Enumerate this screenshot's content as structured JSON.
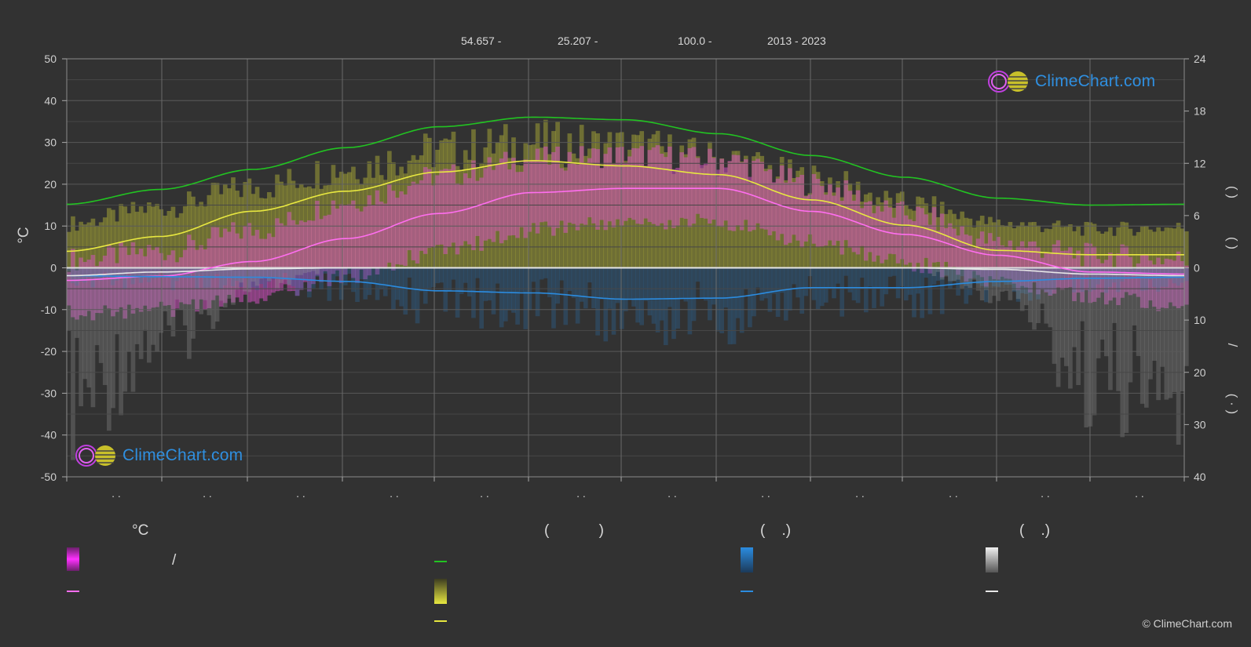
{
  "header": {
    "latitude": "54.657 -",
    "longitude": "25.207 -",
    "elevation": "100.0 -",
    "years": "2013 - 2023"
  },
  "logos": {
    "text": "ClimeChart.com"
  },
  "copyright": "© ClimeChart.com",
  "legend": {
    "temp_unit": "°C",
    "col2_head": "(            )",
    "col3_head": "(    .)",
    "col4_head": "(    .)",
    "slash": "/"
  },
  "chart_data": {
    "type": "line",
    "x_tick_labels": [
      ". .",
      ". .",
      ". .",
      ". .",
      ". .",
      ". .",
      ". .",
      ". .",
      ". .",
      ". .",
      ". .",
      ". ."
    ],
    "ylabel": "°C",
    "ylim": [
      -50,
      50
    ],
    "y_ticks": [
      50,
      40,
      30,
      20,
      10,
      0,
      -10,
      -20,
      -30,
      -40,
      -50
    ],
    "y2_upper_ticks": [
      24,
      18,
      12,
      6,
      0
    ],
    "y2_upper_range": [
      0,
      24
    ],
    "y2_lower_ticks": [
      0,
      10,
      20,
      30,
      40
    ],
    "y2_lower_range": [
      0,
      40
    ],
    "y2_labels_upper": "(      )",
    "y2_labels_mid": "(      )",
    "y2_labels_lower": "/",
    "y2_labels_bottom": "(  ·  )",
    "grid": true,
    "x": [
      0,
      1,
      2,
      3,
      4,
      5,
      6,
      7,
      8,
      9,
      10,
      11,
      12
    ],
    "series": [
      {
        "id": "daylight",
        "axis": "right-upper",
        "color": "#22c322",
        "values": [
          7.3,
          9.0,
          11.3,
          13.8,
          16.2,
          17.3,
          17.0,
          15.4,
          12.9,
          10.4,
          8.0,
          7.2,
          7.3
        ]
      },
      {
        "id": "sunshine",
        "axis": "right-upper",
        "color": "#e8e840",
        "values": [
          1.9,
          3.6,
          6.5,
          8.8,
          11.0,
          12.3,
          11.7,
          10.7,
          7.8,
          4.9,
          2.0,
          1.5,
          1.5
        ]
      },
      {
        "id": "temp_mean",
        "axis": "left",
        "color": "#ff6ef0",
        "values": [
          -3.0,
          -2.0,
          1.5,
          7.0,
          13.0,
          18.0,
          19.0,
          19.0,
          13.5,
          8.0,
          3.0,
          -1.0,
          -1.5
        ]
      },
      {
        "id": "precip",
        "axis": "right-lower",
        "color": "#2b8ce0",
        "values": [
          1.5,
          1.7,
          1.8,
          2.6,
          4.4,
          4.8,
          6.0,
          5.8,
          3.8,
          3.8,
          2.6,
          2.0,
          1.8
        ]
      },
      {
        "id": "snow",
        "axis": "right-lower",
        "color": "#e8e8e8",
        "values": [
          1.5,
          0.8,
          0.2,
          0.0,
          0.0,
          0.0,
          0.0,
          0.0,
          0.0,
          0.0,
          0.3,
          1.2,
          1.5
        ]
      }
    ],
    "bands": {
      "temp_range": {
        "color": "#d94fc8",
        "low": [
          -9,
          -8,
          -5,
          0,
          6,
          11,
          13,
          13,
          8,
          3,
          -1,
          -5,
          -7
        ],
        "high": [
          2,
          4,
          9,
          16,
          22,
          26,
          27,
          26,
          20,
          13,
          6,
          3,
          2
        ]
      },
      "sunshine_range": {
        "color": "#b8b838",
        "top_hours": [
          5.5,
          7.5,
          10.0,
          12.5,
          14.5,
          15.5,
          15.0,
          13.5,
          11.0,
          8.0,
          5.5,
          4.8,
          5.0
        ]
      }
    }
  }
}
